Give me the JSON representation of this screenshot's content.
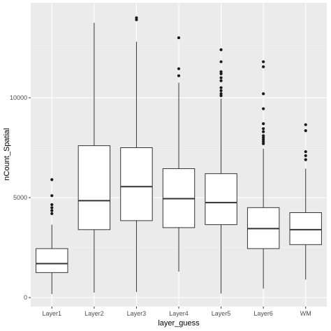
{
  "chart_data": {
    "type": "boxplot",
    "xlabel": "layer_guess",
    "ylabel": "nCount_Spatial",
    "ylim": [
      -450,
      14750
    ],
    "yticks": [
      0,
      5000,
      10000
    ],
    "ytick_labels": [
      "0",
      "5000",
      "10000"
    ],
    "grid": true,
    "categories": [
      "Layer1",
      "Layer2",
      "Layer3",
      "Layer4",
      "Layer5",
      "Layer6",
      "WM"
    ],
    "boxes": [
      {
        "category": "Layer1",
        "whisker_low": 180,
        "q1": 1250,
        "median": 1700,
        "q3": 2450,
        "whisker_high": 3650,
        "outliers": [
          4200,
          4350,
          4500,
          4650,
          5100,
          5900
        ]
      },
      {
        "category": "Layer2",
        "whisker_low": 250,
        "q1": 3400,
        "median": 4850,
        "q3": 7600,
        "whisker_high": 13750,
        "outliers": []
      },
      {
        "category": "Layer3",
        "whisker_low": 280,
        "q1": 3850,
        "median": 5550,
        "q3": 7500,
        "whisker_high": 12800,
        "outliers": [
          13900,
          14000
        ]
      },
      {
        "category": "Layer4",
        "whisker_low": 1300,
        "q1": 3500,
        "median": 4950,
        "q3": 6450,
        "whisker_high": 10750,
        "outliers": [
          11100,
          11450,
          13000
        ]
      },
      {
        "category": "Layer5",
        "whisker_low": 200,
        "q1": 3650,
        "median": 4750,
        "q3": 6200,
        "whisker_high": 9950,
        "outliers": [
          10100,
          10200,
          10350,
          10500,
          10850,
          11000,
          11200,
          11300,
          11800,
          12400
        ]
      },
      {
        "category": "Layer6",
        "whisker_low": 450,
        "q1": 2450,
        "median": 3450,
        "q3": 4500,
        "whisker_high": 7450,
        "outliers": [
          7700,
          7800,
          7900,
          8000,
          8100,
          8300,
          8450,
          8700,
          9450,
          10200,
          11550,
          11800
        ]
      },
      {
        "category": "WM",
        "whisker_low": 900,
        "q1": 2650,
        "median": 3400,
        "q3": 4250,
        "whisker_high": 6450,
        "outliers": [
          6900,
          7100,
          7300,
          8350,
          8650
        ]
      }
    ],
    "colors": {
      "panel": "#ebebeb",
      "grid_major": "#ffffff",
      "grid_minor": "#f4f4f4",
      "box_fill": "#ffffff",
      "box_line": "#333333",
      "point": "#1a1a1a"
    }
  }
}
